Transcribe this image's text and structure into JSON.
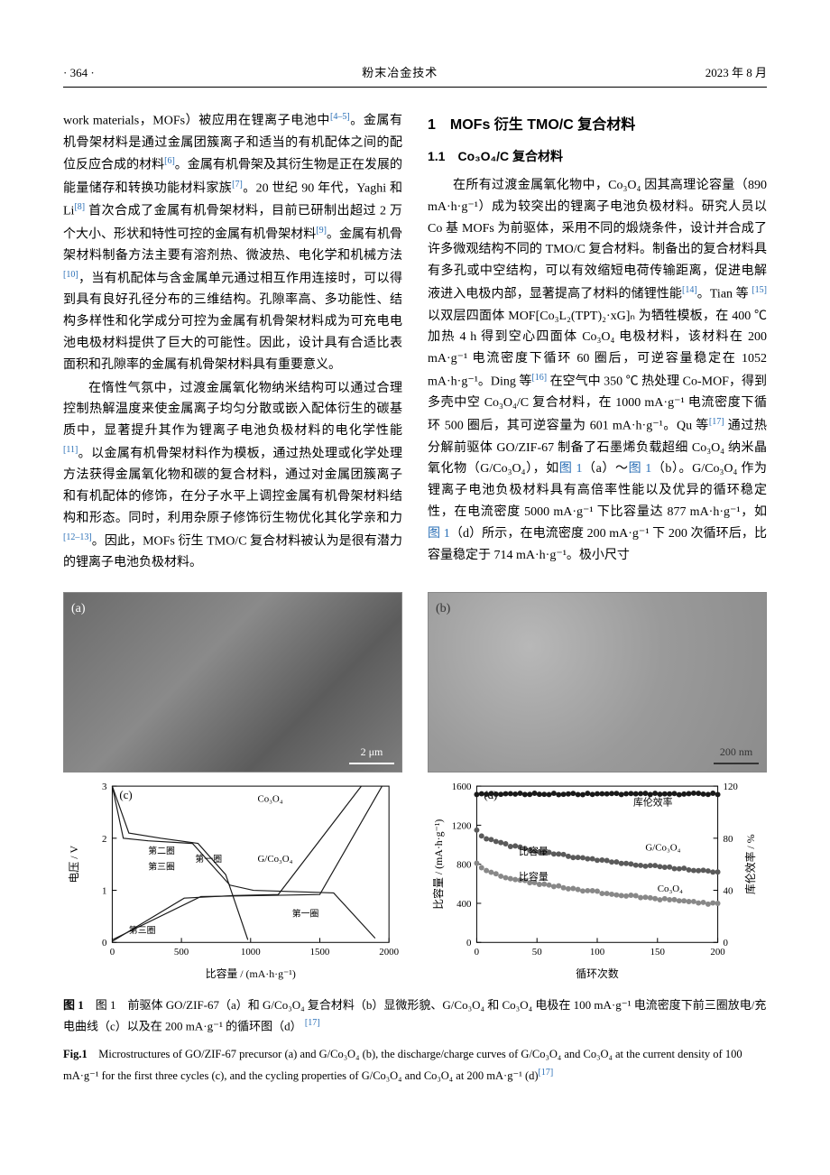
{
  "header": {
    "page_num": "· 364 ·",
    "journal": "粉末冶金技术",
    "date": "2023 年 8 月"
  },
  "col_left": {
    "p1_a": "work materials，MOFs）被应用在锂离子电池中",
    "p1_ref1": "[4–5]",
    "p1_b": "。金属有机骨架材料是通过金属团簇离子和适当的有机配体之间的配位反应合成的材料",
    "p1_ref2": "[6]",
    "p1_c": "。金属有机骨架及其衍生物是正在发展的能量储存和转换功能材料家族",
    "p1_ref3": "[7]",
    "p1_d": "。20 世纪 90 年代，Yaghi 和 Li",
    "p1_ref4": "[8]",
    "p1_e": " 首次合成了金属有机骨架材料，目前已研制出超过 2 万个大小、形状和特性可控的金属有机骨架材料",
    "p1_ref5": "[9]",
    "p1_f": "。金属有机骨架材料制备方法主要有溶剂热、微波热、电化学和机械方法",
    "p1_ref6": "[10]",
    "p1_g": "，当有机配体与含金属单元通过相互作用连接时，可以得到具有良好孔径分布的三维结构。孔隙率高、多功能性、结构多样性和化学成分可控为金属有机骨架材料成为可充电电池电极材料提供了巨大的可能性。因此，设计具有合适比表面积和孔隙率的金属有机骨架材料具有重要意义。",
    "p2_a": "在惰性气氛中，过渡金属氧化物纳米结构可以通过合理控制热解温度来使金属离子均匀分散或嵌入配体衍生的碳基质中，显著提升其作为锂离子电池负极材料的电化学性能",
    "p2_ref1": "[11]",
    "p2_b": "。以金属有机骨架材料作为模板，通过热处理或化学处理方法获得金属氧化物和碳的复合材料，通过对金属团簇离子和有机配体的修饰，在分子水平上调控金属有机骨架材料结构和形态。同时，利用杂原子修饰衍生物优化其化学亲和力",
    "p2_ref2": "[12–13]",
    "p2_c": "。因此，MOFs 衍生 TMO/C 复合材料被认为是很有潜力的锂离子电池负极材料。"
  },
  "col_right": {
    "h1": "1　MOFs 衍生 TMO/C 复合材料",
    "h2": "1.1　Co₃O₄/C 复合材料",
    "p1_a": "在所有过渡金属氧化物中，Co₃O₄ 因其高理论容量（890 mA·h·g⁻¹）成为较突出的锂离子电池负极材料。研究人员以 Co 基 MOFs 为前驱体，采用不同的煅烧条件，设计并合成了许多微观结构不同的 TMO/C 复合材料。制备出的复合材料具有多孔或中空结构，可以有效缩短电荷传输距离，促进电解液进入电极内部，显著提高了材料的储锂性能",
    "p1_ref1": "[14]",
    "p1_b": "。Tian 等 ",
    "p1_ref2": "[15]",
    "p1_c": " 以双层四面体 MOF[Co₃L₂(TPT)₂·xG]ₙ 为牺牲模板，在 400 ℃ 加热 4 h 得到空心四面体 Co₃O₄ 电极材料，该材料在 200 mA·g⁻¹ 电流密度下循环 60 圈后，可逆容量稳定在 1052 mA·h·g⁻¹。Ding 等",
    "p1_ref3": "[16]",
    "p1_d": " 在空气中 350 ℃ 热处理 Co-MOF，得到多壳中空 Co₃O₄/C 复合材料，在 1000 mA·g⁻¹ 电流密度下循环 500 圈后，其可逆容量为 601 mA·h·g⁻¹。Qu 等",
    "p1_ref4": "[17]",
    "p1_e": " 通过热分解前驱体 GO/ZIF-67 制备了石墨烯负载超细 Co₃O₄ 纳米晶氧化物（G/Co₃O₄），如",
    "p1_fl1": "图 1",
    "p1_f": "（a）～",
    "p1_fl2": "图 1",
    "p1_g": "（b）。G/Co₃O₄ 作为锂离子电池负极材料具有高倍率性能以及优异的循环稳定性，在电流密度 5000 mA·g⁻¹ 下比容量达 877 mA·h·g⁻¹，如",
    "p1_fl3": "图 1",
    "p1_h": "（d）所示，在电流密度 200 mA·g⁻¹ 下 200 次循环后，比容量稳定于 714 mA·h·g⁻¹。极小尺寸"
  },
  "fig": {
    "panel_a": {
      "label": "(a)",
      "scale": "2 μm"
    },
    "panel_b": {
      "label": "(b)",
      "scale": "200 nm"
    },
    "chart_c": {
      "label": "(c)",
      "type": "line",
      "xlabel": "比容量 / (mA·h·g⁻¹)",
      "ylabel": "电压 / V",
      "xlim": [
        0,
        2000
      ],
      "ylim": [
        0,
        3
      ],
      "xticks": [
        0,
        500,
        1000,
        1500,
        2000
      ],
      "yticks": [
        0,
        1,
        2,
        3
      ],
      "series_labels": {
        "co3o4": "Co₃O₄",
        "gco3o4": "G/Co₃O₄",
        "r1": "第一圈",
        "r2": "第二圈",
        "r3": "第三圈"
      },
      "line_color": "#1a1a1a",
      "line_width": 1.2,
      "grid_color": "#000000",
      "background_color": "#ffffff",
      "curves": {
        "co3o4_charge_1": [
          [
            0,
            3.0
          ],
          [
            120,
            2.1
          ],
          [
            350,
            2.0
          ],
          [
            620,
            1.9
          ],
          [
            820,
            1.3
          ],
          [
            980,
            0.05
          ]
        ],
        "co3o4_discharge_1": [
          [
            0,
            0.02
          ],
          [
            520,
            0.85
          ],
          [
            880,
            0.9
          ],
          [
            1200,
            0.92
          ],
          [
            1800,
            3.0
          ]
        ],
        "gco3o4_charge_1": [
          [
            0,
            3.0
          ],
          [
            80,
            2.0
          ],
          [
            260,
            1.95
          ],
          [
            580,
            1.9
          ],
          [
            850,
            1.1
          ],
          [
            1020,
            1.0
          ],
          [
            1600,
            0.95
          ],
          [
            1900,
            0.08
          ]
        ],
        "gco3o4_discharge_1": [
          [
            0,
            0.05
          ],
          [
            640,
            0.88
          ],
          [
            1100,
            0.9
          ],
          [
            1500,
            0.92
          ],
          [
            1950,
            3.0
          ]
        ]
      }
    },
    "chart_d": {
      "label": "(d)",
      "type": "scatter-line",
      "xlabel": "循环次数",
      "ylabel_left": "比容量 / (mA·h·g⁻¹)",
      "ylabel_right": "库伦效率 / %",
      "xlim": [
        0,
        200
      ],
      "ylim_left": [
        0,
        1600
      ],
      "ylim_right": [
        0,
        120
      ],
      "xticks": [
        0,
        50,
        100,
        150,
        200
      ],
      "yticks_left": [
        0,
        400,
        800,
        1200,
        1600
      ],
      "yticks_right": [
        0,
        40,
        80,
        120
      ],
      "series": {
        "ce": {
          "label": "库伦效率",
          "color": "#1a1a1a",
          "y": 1520,
          "marker": "circle"
        },
        "gco3o4_cap": {
          "label": "G/Co₃O₄",
          "sublabel": "比容量",
          "color": "#5a5a5a",
          "y_start": 1150,
          "y_end": 720,
          "marker": "circle"
        },
        "co3o4_cap": {
          "label": "Co₃O₄",
          "sublabel": "比容量",
          "color": "#888888",
          "y_start": 820,
          "y_end": 390,
          "marker": "circle"
        }
      },
      "marker_size": 3,
      "background_color": "#ffffff"
    },
    "caption_cn": "图 1　前驱体 GO/ZIF-67（a）和 G/Co₃O₄ 复合材料（b）显微形貌、G/Co₃O₄ 和 Co₃O₄ 电极在 100 mA·g⁻¹ 电流密度下前三圈放电/充电曲线（c）以及在 200 mA·g⁻¹ 的循环图（d）",
    "caption_cn_ref": "[17]",
    "caption_en": "Microstructures of GO/ZIF-67 precursor (a) and G/Co₃O₄ (b), the discharge/charge curves of G/Co₃O₄ and Co₃O₄ at the current density of 100 mA·g⁻¹ for the first three cycles (c), and the cycling properties of G/Co₃O₄ and Co₃O₄ at 200 mA·g⁻¹ (d)",
    "caption_en_ref": "[17]",
    "caption_en_label": "Fig.1"
  }
}
